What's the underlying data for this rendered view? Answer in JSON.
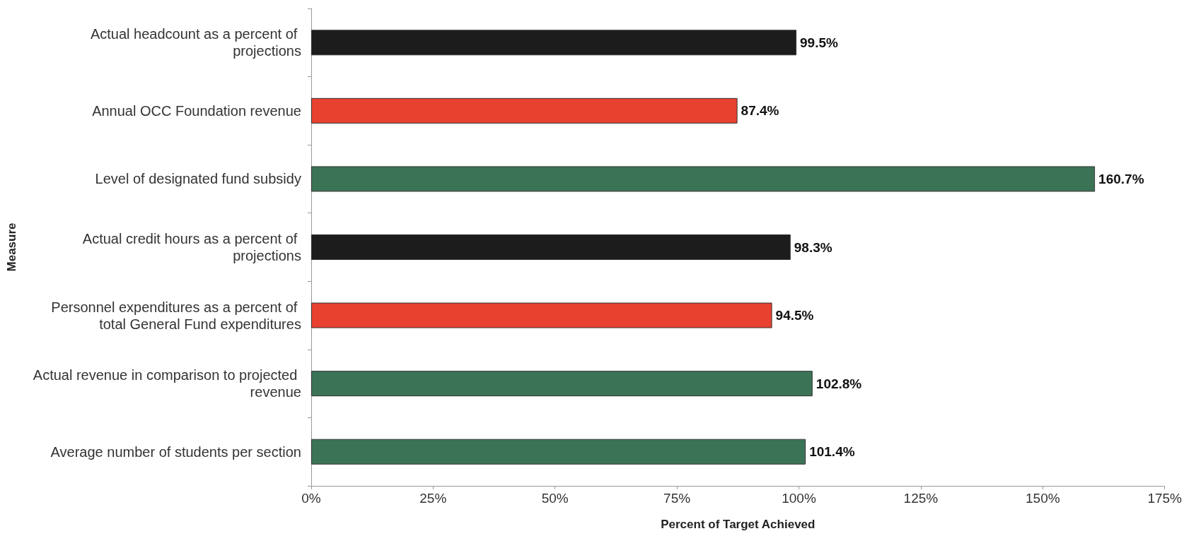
{
  "chart_data": {
    "type": "bar",
    "orientation": "horizontal",
    "xlabel": "Percent of Target Achieved",
    "ylabel": "Measure",
    "categories": [
      "Actual headcount as a percent of projections",
      "Annual OCC Foundation revenue",
      "Level of designated fund subsidy",
      "Actual credit hours as a percent of projections",
      "Personnel expenditures as a percent of total General Fund expenditures",
      "Actual revenue in comparison to projected revenue",
      "Average number of students per section"
    ],
    "values": [
      99.5,
      87.4,
      160.7,
      98.3,
      94.5,
      102.8,
      101.4
    ],
    "colors": [
      "#1c1c1c",
      "#e8412f",
      "#3b7356",
      "#1c1c1c",
      "#e8412f",
      "#3b7356",
      "#3b7356"
    ],
    "value_labels": [
      "99.5%",
      "87.4%",
      "160.7%",
      "98.3%",
      "94.5%",
      "102.8%",
      "101.4%"
    ],
    "xlim": [
      0,
      175
    ],
    "xticks": [
      {
        "value": 0,
        "label": "0%"
      },
      {
        "value": 25,
        "label": "25%"
      },
      {
        "value": 50,
        "label": "50%"
      },
      {
        "value": 75,
        "label": "75%"
      },
      {
        "value": 100,
        "label": "100%"
      },
      {
        "value": 125,
        "label": "125%"
      },
      {
        "value": 150,
        "label": "150%"
      },
      {
        "value": 175,
        "label": "175%"
      }
    ],
    "grid": false
  }
}
